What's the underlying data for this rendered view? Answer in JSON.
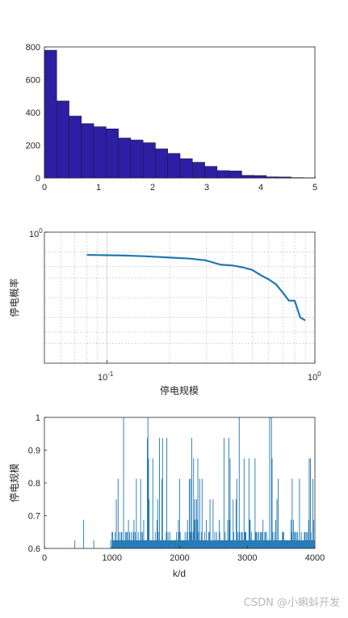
{
  "watermark": "CSDN @小蝌蚪开发",
  "chart_data": [
    {
      "type": "bar",
      "xlim": [
        0,
        5
      ],
      "ylim": [
        0,
        800
      ],
      "xticks": [
        0,
        1,
        2,
        3,
        4,
        5
      ],
      "yticks": [
        0,
        200,
        400,
        600,
        800
      ],
      "bin_width": 0.228,
      "bin_edges_start": 0,
      "values": [
        780,
        470,
        378,
        332,
        313,
        300,
        244,
        232,
        215,
        178,
        150,
        118,
        96,
        71,
        45,
        43,
        16,
        15,
        7,
        6,
        2,
        1
      ],
      "bar_color": "#2c1fa3",
      "grid": false
    },
    {
      "type": "line",
      "xscale": "log",
      "yscale": "log",
      "xlim": [
        0.05,
        1
      ],
      "ylim": [
        0.01,
        1
      ],
      "xtick_labels": [
        "10^-1",
        "10^0"
      ],
      "ytick_labels": [
        "10^0"
      ],
      "xlabel": "停电规模",
      "ylabel": "停电概率",
      "grid": true,
      "series": [
        {
          "x": [
            0.08,
            0.1,
            0.12,
            0.15,
            0.2,
            0.25,
            0.3,
            0.35,
            0.4,
            0.45,
            0.5,
            0.55,
            0.6,
            0.65,
            0.7,
            0.75,
            0.8,
            0.85,
            0.9
          ],
          "y": [
            0.45,
            0.445,
            0.44,
            0.43,
            0.41,
            0.395,
            0.37,
            0.32,
            0.31,
            0.29,
            0.265,
            0.22,
            0.19,
            0.16,
            0.12,
            0.09,
            0.09,
            0.05,
            0.045
          ],
          "color": "#1f77b4"
        }
      ]
    },
    {
      "type": "stem",
      "xlim": [
        0,
        4000
      ],
      "ylim": [
        0.6,
        1
      ],
      "xticks": [
        0,
        1000,
        2000,
        3000,
        4000
      ],
      "yticks": [
        0.6,
        0.7,
        0.8,
        0.9,
        1
      ],
      "xlabel": "k/d",
      "ylabel": "停电规模",
      "color": "#1f77b4",
      "grid": false
    }
  ]
}
